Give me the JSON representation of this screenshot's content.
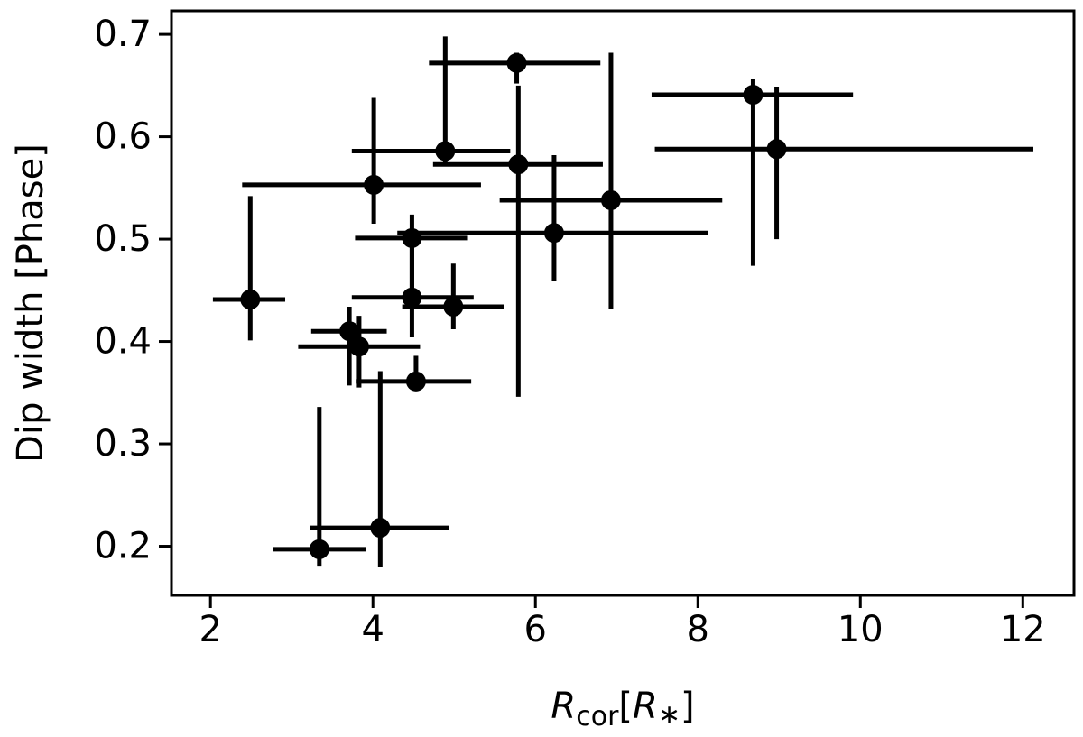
{
  "chart_data": {
    "type": "scatter",
    "x_label": [
      "R",
      "cor",
      "[",
      "R",
      "∗",
      "]"
    ],
    "y_label": "Dip width [Phase]",
    "color": "#000000",
    "x": [
      5.77,
      8.68,
      4.89,
      8.97,
      4.01,
      5.79,
      6.93,
      6.23,
      4.48,
      2.49,
      4.48,
      4.99,
      3.71,
      3.83,
      4.53,
      4.09,
      3.34
    ],
    "values": [
      0.672,
      0.641,
      0.586,
      0.588,
      0.553,
      0.573,
      0.538,
      0.506,
      0.501,
      0.441,
      0.443,
      0.434,
      0.41,
      0.395,
      0.361,
      0.218,
      0.197
    ],
    "xerr": [
      [
        1.08,
        1.03
      ],
      [
        1.25,
        1.23
      ],
      [
        1.15,
        0.8
      ],
      [
        1.5,
        3.16
      ],
      [
        1.62,
        1.32
      ],
      [
        1.05,
        1.04
      ],
      [
        1.37,
        1.37
      ],
      [
        1.93,
        1.9
      ],
      [
        0.7,
        0.69
      ],
      [
        0.46,
        0.43
      ],
      [
        0.74,
        0.76
      ],
      [
        0.63,
        0.62
      ],
      [
        0.47,
        0.46
      ],
      [
        0.75,
        0.75
      ],
      [
        0.73,
        0.68
      ],
      [
        0.87,
        0.85
      ],
      [
        0.57,
        0.57
      ]
    ],
    "yerr": [
      [
        0.02,
        0.01
      ],
      [
        0.167,
        0.015
      ],
      [
        0.015,
        0.112
      ],
      [
        0.088,
        0.061
      ],
      [
        0.038,
        0.085
      ],
      [
        0.227,
        0.077
      ],
      [
        0.106,
        0.144
      ],
      [
        0.047,
        0.076
      ],
      [
        0.058,
        0.023
      ],
      [
        0.04,
        0.101
      ],
      [
        0.039,
        0.058
      ],
      [
        0.022,
        0.042
      ],
      [
        0.053,
        0.024
      ],
      [
        0.04,
        0.03
      ],
      [
        0.009,
        0.025
      ],
      [
        0.038,
        0.153
      ],
      [
        0.016,
        0.139
      ]
    ],
    "xlim": [
      1.52,
      12.63
    ],
    "ylim": [
      0.152,
      0.723
    ],
    "xticks": [
      2,
      4,
      6,
      8,
      10,
      12
    ],
    "yticks": [
      0.2,
      0.3,
      0.4,
      0.5,
      0.6,
      0.7
    ]
  }
}
